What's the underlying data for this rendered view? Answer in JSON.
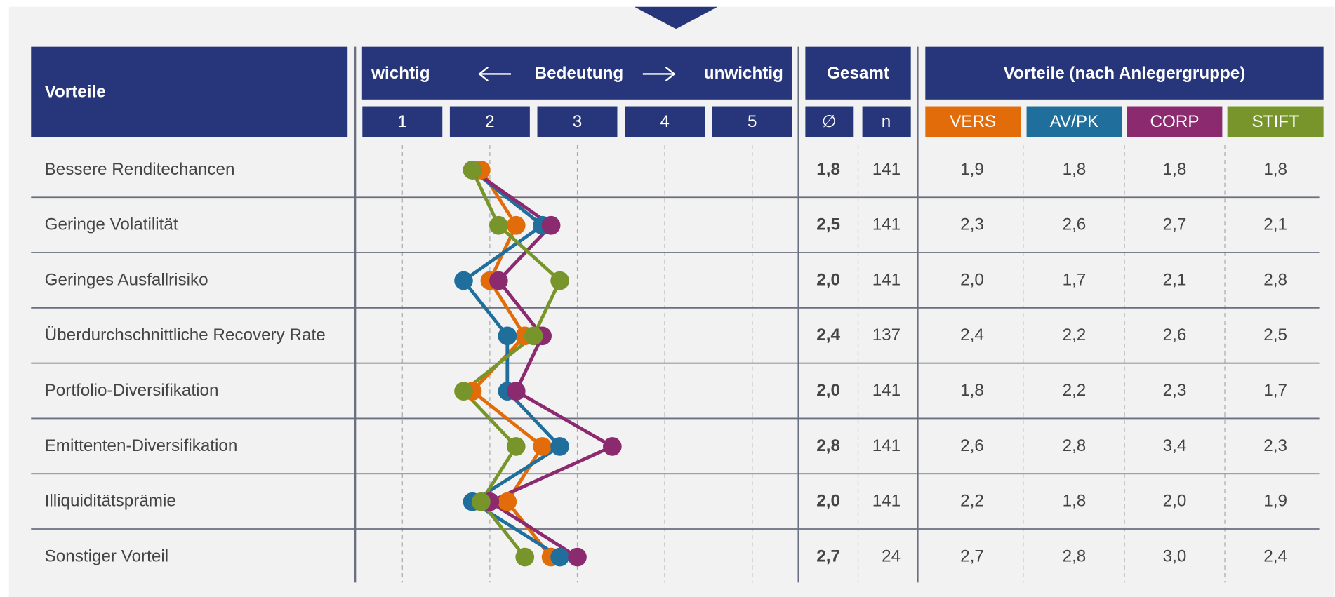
{
  "chart_data": {
    "type": "dot_line",
    "header": {
      "label_column": "Vorteile",
      "left": "wichtig",
      "middle": "Bedeutung",
      "right": "unwichtig",
      "total": "Gesamt",
      "mean": "∅",
      "n": "n",
      "groups": "Vorteile (nach Anlegergruppe)"
    },
    "categories": [
      "Bessere Renditechancen",
      "Geringe Volatilität",
      "Geringes Ausfallrisiko",
      "Überdurchschnittliche Recovery Rate",
      "Portfolio-Diversifikation",
      "Emittenten-Diversifikation",
      "Illiquiditätsprämie",
      "Sonstiger Vorteil"
    ],
    "xlim": [
      0.5,
      5.5
    ],
    "xticks": [
      1,
      2,
      3,
      4,
      5
    ],
    "mean": {
      "values": [
        1.8,
        2.5,
        2.0,
        2.4,
        2.0,
        2.8,
        2.0,
        2.7
      ],
      "value_labels": [
        "1,8",
        "2,5",
        "2,0",
        "2,4",
        "2,0",
        "2,8",
        "2,0",
        "2,7"
      ]
    },
    "n": [
      141,
      141,
      141,
      137,
      141,
      141,
      141,
      24
    ],
    "series": [
      {
        "name": "VERS",
        "color": "#e36c0a",
        "values": [
          1.9,
          2.3,
          2.0,
          2.4,
          1.8,
          2.6,
          2.2,
          2.7
        ],
        "value_labels": [
          "1,9",
          "2,3",
          "2,0",
          "2,4",
          "1,8",
          "2,6",
          "2,2",
          "2,7"
        ]
      },
      {
        "name": "AV/PK",
        "color": "#1f6e9c",
        "values": [
          1.8,
          2.6,
          1.7,
          2.2,
          2.2,
          2.8,
          1.8,
          2.8
        ],
        "value_labels": [
          "1,8",
          "2,6",
          "1,7",
          "2,2",
          "2,2",
          "2,8",
          "1,8",
          "2,8"
        ]
      },
      {
        "name": "CORP",
        "color": "#8b2a6e",
        "values": [
          1.8,
          2.7,
          2.1,
          2.6,
          2.3,
          3.4,
          2.0,
          3.0
        ],
        "value_labels": [
          "1,8",
          "2,7",
          "2,1",
          "2,6",
          "2,3",
          "3,4",
          "2,0",
          "3,0"
        ]
      },
      {
        "name": "STIFT",
        "color": "#77952a",
        "values": [
          1.8,
          2.1,
          2.8,
          2.5,
          1.7,
          2.3,
          1.9,
          2.4
        ],
        "value_labels": [
          "1,8",
          "2,1",
          "2,8",
          "2,5",
          "1,7",
          "2,3",
          "1,9",
          "2,4"
        ]
      }
    ]
  }
}
